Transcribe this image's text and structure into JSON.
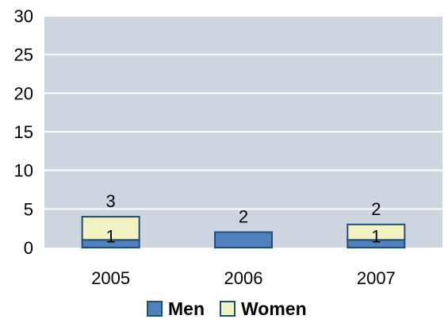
{
  "chart_data": {
    "type": "bar",
    "stacked": true,
    "categories": [
      "2005",
      "2006",
      "2007"
    ],
    "series": [
      {
        "name": "Men",
        "values": [
          1,
          2,
          1
        ],
        "color": "#4f81bd",
        "border": "#1f4e79"
      },
      {
        "name": "Women",
        "values": [
          3,
          0,
          2
        ],
        "color": "#f2f2c2",
        "border": "#1f4e79"
      }
    ],
    "ylim": [
      0,
      30
    ],
    "yticks": [
      0,
      5,
      10,
      15,
      20,
      25,
      30
    ],
    "grid": true,
    "legend": "bottom",
    "data_labels": [
      {
        "category": "2005",
        "series": "Women",
        "text": "3"
      },
      {
        "category": "2005",
        "series": "Men",
        "text": "1"
      },
      {
        "category": "2006",
        "series": "Men",
        "text": "2"
      },
      {
        "category": "2007",
        "series": "Women",
        "text": "2"
      },
      {
        "category": "2007",
        "series": "Men",
        "text": "1"
      }
    ],
    "plot_background": "#cdd5e0",
    "grid_color": "#ffffff"
  }
}
